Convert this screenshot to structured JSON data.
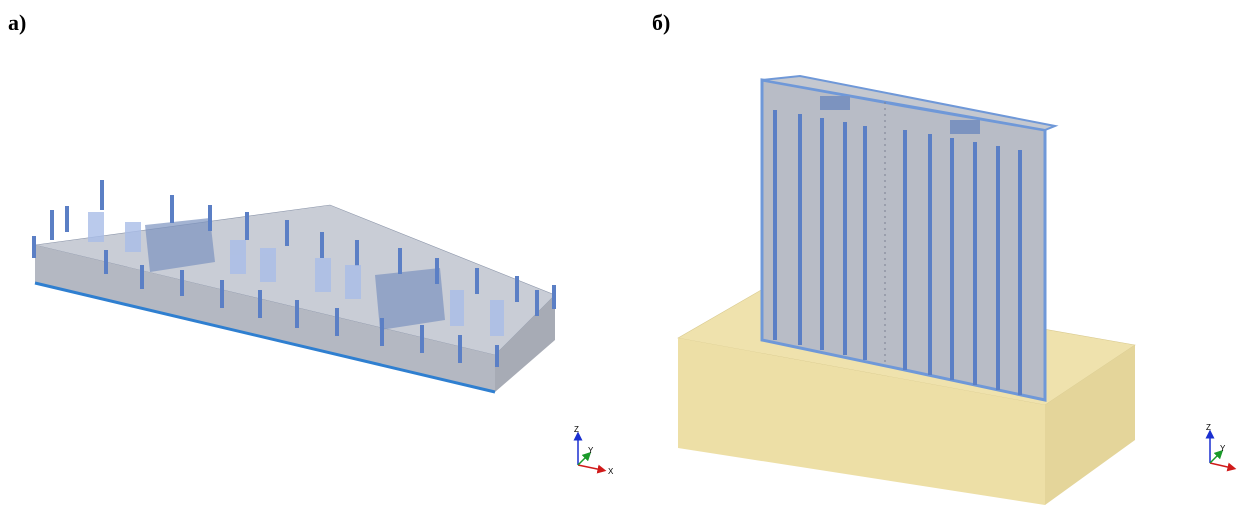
{
  "panels": [
    {
      "label": "а)",
      "axes": {
        "z": "Z",
        "y": "Y",
        "x": "X"
      }
    },
    {
      "label": "б)",
      "axes": {
        "z": "Z",
        "y": "Y"
      }
    }
  ]
}
